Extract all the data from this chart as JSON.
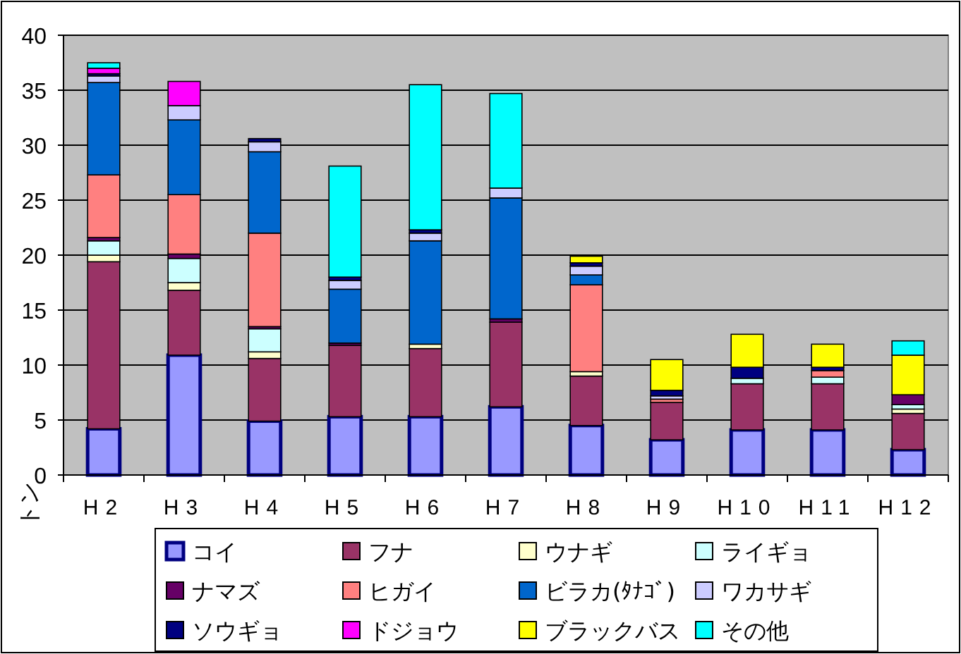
{
  "chart_data": {
    "type": "bar",
    "stacked": true,
    "ylabel": "トン",
    "categories": [
      "H2",
      "H3",
      "H4",
      "H5",
      "H6",
      "H7",
      "H8",
      "H9",
      "H10",
      "H11",
      "H12"
    ],
    "ylim": [
      0,
      40
    ],
    "yticks": [
      0,
      5,
      10,
      15,
      20,
      25,
      30,
      35,
      40
    ],
    "grid": "y",
    "legend": "bottom",
    "series": [
      {
        "name": "コイ",
        "color": "#9999ff",
        "values": [
          4.2,
          10.9,
          4.9,
          5.3,
          5.3,
          6.2,
          4.5,
          3.2,
          4.1,
          4.1,
          2.3
        ]
      },
      {
        "name": "フナ",
        "color": "#993366",
        "values": [
          15.2,
          5.9,
          5.7,
          6.5,
          6.2,
          7.7,
          4.5,
          3.4,
          4.2,
          4.2,
          3.3
        ]
      },
      {
        "name": "ウナギ",
        "color": "#ffffcc",
        "values": [
          0.6,
          0.7,
          0.6,
          0,
          0.4,
          0,
          0.4,
          0,
          0,
          0,
          0.4
        ]
      },
      {
        "name": "ライギョ",
        "color": "#ccffff",
        "values": [
          1.3,
          2.2,
          2.1,
          0,
          0,
          0,
          0,
          0,
          0.5,
          0.6,
          0.4
        ]
      },
      {
        "name": "ナマズ",
        "color": "#660066",
        "values": [
          0.3,
          0.4,
          0.2,
          0.2,
          0,
          0.3,
          0,
          0,
          0,
          0,
          0.9
        ]
      },
      {
        "name": "ヒガイ",
        "color": "#ff8080",
        "values": [
          5.7,
          5.4,
          8.5,
          0,
          0,
          0,
          7.9,
          0.3,
          0,
          0.6,
          0
        ]
      },
      {
        "name": "ビラカ(ﾀﾅｺﾞ)",
        "color": "#0066cc",
        "values": [
          8.4,
          6.8,
          7.4,
          4.9,
          9.4,
          11.0,
          0.9,
          0,
          0,
          0,
          0
        ]
      },
      {
        "name": "ワカサギ",
        "color": "#ccccff",
        "values": [
          0.6,
          1.3,
          0.9,
          0.8,
          0.7,
          0.9,
          0.8,
          0.3,
          0,
          0,
          0
        ]
      },
      {
        "name": "ソウギョ",
        "color": "#000080",
        "values": [
          0.2,
          0,
          0.3,
          0.3,
          0.3,
          0,
          0.3,
          0.5,
          1.0,
          0.3,
          0
        ]
      },
      {
        "name": "ドジョウ",
        "color": "#ff00ff",
        "values": [
          0.5,
          2.2,
          0,
          0,
          0,
          0,
          0,
          0,
          0,
          0,
          0
        ]
      },
      {
        "name": "ブラックバス",
        "color": "#ffff00",
        "values": [
          0,
          0,
          0,
          0,
          0,
          0,
          0.6,
          2.8,
          3.0,
          2.1,
          3.6
        ]
      },
      {
        "name": "その他",
        "color": "#00ffff",
        "values": [
          0.5,
          0,
          0,
          10.1,
          13.2,
          8.6,
          0,
          0,
          0,
          0,
          1.3
        ]
      }
    ]
  }
}
